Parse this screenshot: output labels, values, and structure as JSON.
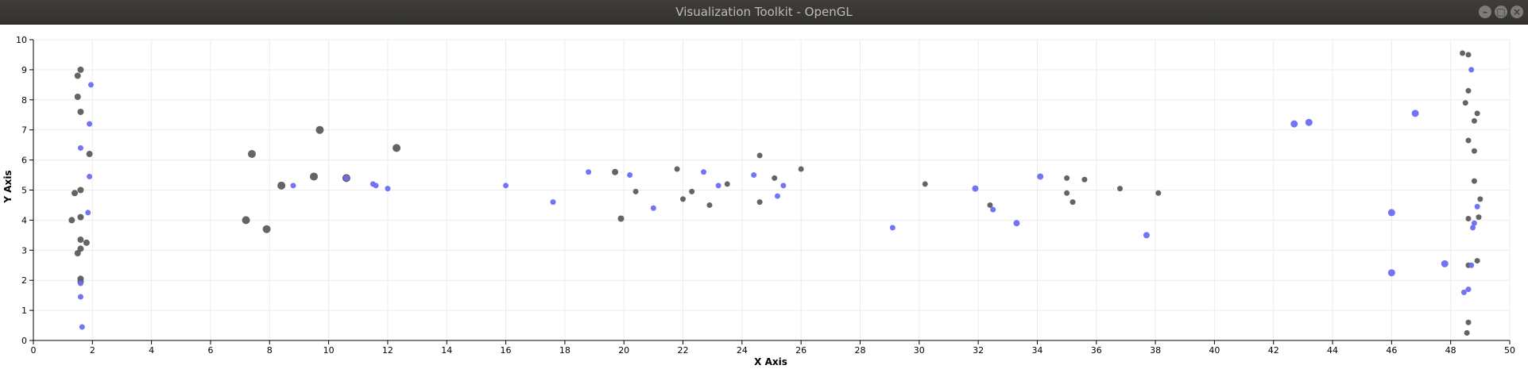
{
  "window": {
    "title": "Visualization Toolkit - OpenGL",
    "buttons": {
      "minimize": "–",
      "maximize": "□",
      "close": "×"
    }
  },
  "chart_data": {
    "type": "scatter",
    "title": "",
    "xlabel": "X Axis",
    "ylabel": "Y Axis",
    "xlim": [
      0,
      50
    ],
    "ylim": [
      0,
      10
    ],
    "xticks": [
      0,
      2,
      4,
      6,
      8,
      10,
      12,
      14,
      16,
      18,
      20,
      22,
      24,
      26,
      28,
      30,
      32,
      34,
      36,
      38,
      40,
      42,
      44,
      46,
      48,
      50
    ],
    "yticks": [
      0,
      1,
      2,
      3,
      4,
      5,
      6,
      7,
      8,
      9,
      10
    ],
    "grid": true,
    "legend": "none",
    "colors": {
      "series_gray": "#5c5c5c",
      "series_blue": "#6b6bf5"
    },
    "series": [
      {
        "color": "gray",
        "points": [
          [
            1.6,
            9.0,
            4
          ],
          [
            1.5,
            8.8,
            4
          ],
          [
            1.5,
            8.1,
            4
          ],
          [
            1.6,
            7.6,
            4
          ],
          [
            1.9,
            6.2,
            4
          ],
          [
            1.6,
            5.0,
            4
          ],
          [
            1.4,
            4.9,
            4
          ],
          [
            1.6,
            4.1,
            4
          ],
          [
            1.3,
            4.0,
            4
          ],
          [
            1.6,
            3.35,
            4
          ],
          [
            1.8,
            3.25,
            4
          ],
          [
            1.6,
            3.05,
            4
          ],
          [
            1.5,
            2.9,
            4
          ],
          [
            1.6,
            2.05,
            4
          ],
          [
            1.6,
            1.95,
            4
          ],
          [
            7.4,
            6.2,
            5
          ],
          [
            7.2,
            4.0,
            5
          ],
          [
            7.9,
            3.7,
            5
          ],
          [
            8.4,
            5.15,
            5
          ],
          [
            9.5,
            5.45,
            5
          ],
          [
            9.7,
            7.0,
            5
          ],
          [
            10.6,
            5.4,
            5
          ],
          [
            12.3,
            6.4,
            5
          ],
          [
            19.7,
            5.6,
            4
          ],
          [
            19.9,
            4.05,
            4
          ],
          [
            20.4,
            4.95,
            3.5
          ],
          [
            21.8,
            5.7,
            3.5
          ],
          [
            22.0,
            4.7,
            3.5
          ],
          [
            22.3,
            4.95,
            3.5
          ],
          [
            22.9,
            4.5,
            3.5
          ],
          [
            23.5,
            5.2,
            3.5
          ],
          [
            24.6,
            6.15,
            3.5
          ],
          [
            24.6,
            4.6,
            3.5
          ],
          [
            25.1,
            5.4,
            3.5
          ],
          [
            26.0,
            5.7,
            3.5
          ],
          [
            30.2,
            5.2,
            3.5
          ],
          [
            32.4,
            4.5,
            3.5
          ],
          [
            35.0,
            5.4,
            3.5
          ],
          [
            35.0,
            4.9,
            3.5
          ],
          [
            35.2,
            4.6,
            3.5
          ],
          [
            35.6,
            5.35,
            3.5
          ],
          [
            36.8,
            5.05,
            3.5
          ],
          [
            38.1,
            4.9,
            3.5
          ],
          [
            48.4,
            9.55,
            3.5
          ],
          [
            48.6,
            9.5,
            3.5
          ],
          [
            48.6,
            8.3,
            3.5
          ],
          [
            48.5,
            7.9,
            3.5
          ],
          [
            48.9,
            7.55,
            3.5
          ],
          [
            48.8,
            7.3,
            3.5
          ],
          [
            48.6,
            6.65,
            3.5
          ],
          [
            48.8,
            6.3,
            3.5
          ],
          [
            48.8,
            5.3,
            3.5
          ],
          [
            49.0,
            4.7,
            3.5
          ],
          [
            48.6,
            4.05,
            3.5
          ],
          [
            48.95,
            4.1,
            3.5
          ],
          [
            48.6,
            2.5,
            3.5
          ],
          [
            48.9,
            2.65,
            3.5
          ],
          [
            48.6,
            0.6,
            3.5
          ],
          [
            48.55,
            0.25,
            3.5
          ]
        ]
      },
      {
        "color": "blue",
        "points": [
          [
            1.95,
            8.5,
            3.5
          ],
          [
            1.9,
            7.2,
            3.5
          ],
          [
            1.6,
            6.4,
            3.5
          ],
          [
            1.9,
            5.45,
            3.5
          ],
          [
            1.85,
            4.25,
            3.5
          ],
          [
            1.6,
            1.9,
            3.5
          ],
          [
            1.6,
            1.45,
            3.5
          ],
          [
            1.65,
            0.45,
            3.5
          ],
          [
            8.8,
            5.15,
            3.5
          ],
          [
            10.6,
            5.4,
            3.5
          ],
          [
            11.5,
            5.2,
            3.5
          ],
          [
            11.6,
            5.15,
            3.5
          ],
          [
            12.0,
            5.05,
            3.5
          ],
          [
            16.0,
            5.15,
            3.5
          ],
          [
            17.6,
            4.6,
            3.5
          ],
          [
            18.8,
            5.6,
            3.5
          ],
          [
            20.2,
            5.5,
            3.5
          ],
          [
            21.0,
            4.4,
            3.5
          ],
          [
            22.7,
            5.6,
            3.5
          ],
          [
            23.2,
            5.15,
            3.5
          ],
          [
            24.4,
            5.5,
            3.5
          ],
          [
            25.2,
            4.8,
            3.5
          ],
          [
            25.4,
            5.15,
            3.5
          ],
          [
            29.1,
            3.75,
            3.5
          ],
          [
            31.9,
            5.05,
            4
          ],
          [
            32.5,
            4.35,
            3.5
          ],
          [
            33.3,
            3.9,
            4
          ],
          [
            34.1,
            5.45,
            4
          ],
          [
            37.7,
            3.5,
            4
          ],
          [
            42.7,
            7.2,
            4.5
          ],
          [
            43.2,
            7.25,
            4.5
          ],
          [
            46.0,
            4.25,
            4.5
          ],
          [
            46.0,
            2.25,
            4.5
          ],
          [
            46.8,
            7.55,
            4.5
          ],
          [
            47.8,
            2.55,
            4.5
          ],
          [
            48.7,
            9.0,
            3.5
          ],
          [
            48.9,
            4.45,
            3.5
          ],
          [
            48.8,
            3.9,
            3.5
          ],
          [
            48.75,
            3.75,
            3.5
          ],
          [
            48.7,
            2.5,
            3.5
          ],
          [
            48.6,
            1.7,
            3.5
          ],
          [
            48.45,
            1.6,
            3.5
          ]
        ]
      }
    ]
  }
}
